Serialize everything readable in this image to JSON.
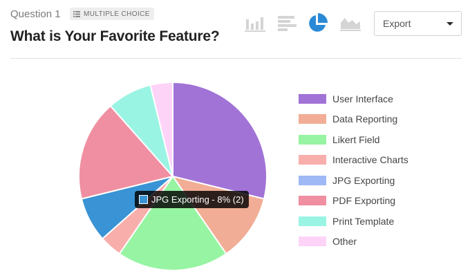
{
  "question": {
    "number_label": "Question 1",
    "type_label": "MULTIPLE CHOICE",
    "title": "What is Your Favorite Feature?"
  },
  "toolbar": {
    "chart_types": [
      {
        "icon": "bar-chart-icon",
        "active": false
      },
      {
        "icon": "horizontal-bar-chart-icon",
        "active": false
      },
      {
        "icon": "pie-chart-icon",
        "active": true
      },
      {
        "icon": "area-chart-icon",
        "active": false
      }
    ],
    "export_label": "Export"
  },
  "colors": {
    "active_icon": "#2b8ad6",
    "inactive_icon": "#d4d4d4"
  },
  "chart_data": {
    "type": "pie",
    "categories": [
      "User Interface",
      "Data Reporting",
      "Likert Field",
      "Interactive Charts",
      "JPG Exporting",
      "PDF Exporting",
      "Print Template",
      "Other"
    ],
    "values": [
      30,
      12,
      20,
      4,
      8,
      18,
      8,
      4
    ],
    "colors": [
      "#a173d6",
      "#f1ad95",
      "#96f4a2",
      "#f8aeab",
      "#3a93d4",
      "#ef8fa1",
      "#9af4e3",
      "#fdd3f8"
    ],
    "legend_colors": [
      "#a173d6",
      "#f1ad95",
      "#96f4a2",
      "#f8aeab",
      "#9fb8f6",
      "#ef8fa1",
      "#9af4e3",
      "#fdd3f8"
    ],
    "legend_position": "right",
    "start_angle_deg": 0,
    "highlighted_index": 4
  },
  "tooltip": {
    "text": "JPG Exporting - 8% (2)",
    "color": "#3a93d4"
  }
}
